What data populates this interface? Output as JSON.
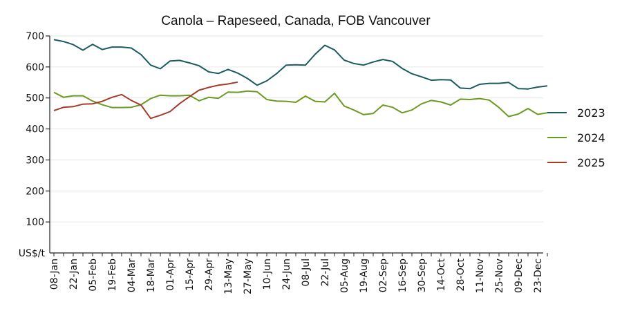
{
  "chart_data": {
    "type": "line",
    "title": "Canola – Rapeseed, Canada, FOB Vancouver",
    "ylabel": "US$/t",
    "ylim": [
      0,
      700
    ],
    "yticks": [
      100,
      200,
      300,
      400,
      500,
      600,
      700
    ],
    "grid": true,
    "legend_position": "right",
    "x_weeks": 52,
    "x_tick_labels": [
      "08-Jan",
      "22-Jan",
      "05-Feb",
      "19-Feb",
      "04-Mar",
      "18-Mar",
      "01-Apr",
      "15-Apr",
      "29-Apr",
      "13-May",
      "27-May",
      "10-Jun",
      "24-Jun",
      "08-Jul",
      "22-Jul",
      "05-Aug",
      "19-Aug",
      "02-Sep",
      "16-Sep",
      "30-Sep",
      "14-Oct",
      "28-Oct",
      "11-Nov",
      "25-Nov",
      "09-Dec",
      "23-Dec"
    ],
    "series": [
      {
        "name": "2023",
        "color": "#1b5a5e",
        "values": [
          688,
          682,
          672,
          654,
          673,
          656,
          664,
          664,
          661,
          640,
          606,
          594,
          619,
          621,
          613,
          604,
          584,
          579,
          592,
          580,
          563,
          541,
          555,
          578,
          606,
          607,
          606,
          641,
          670,
          655,
          622,
          611,
          606,
          616,
          624,
          618,
          595,
          578,
          568,
          557,
          559,
          558,
          532,
          530,
          544,
          547,
          547,
          550,
          530,
          529,
          535,
          539
        ]
      },
      {
        "name": "2024",
        "color": "#6a9a22",
        "values": [
          518,
          502,
          507,
          507,
          490,
          478,
          469,
          469,
          470,
          478,
          498,
          509,
          507,
          507,
          509,
          491,
          502,
          499,
          519,
          518,
          522,
          520,
          495,
          490,
          489,
          486,
          506,
          489,
          487,
          515,
          474,
          461,
          446,
          450,
          477,
          470,
          452,
          461,
          481,
          492,
          487,
          477,
          496,
          495,
          498,
          493,
          469,
          440,
          448,
          466,
          447,
          452
        ]
      },
      {
        "name": "2025",
        "color": "#a23b2c",
        "values": [
          459,
          470,
          472,
          480,
          481,
          489,
          502,
          511,
          492,
          477,
          434,
          444,
          456,
          482,
          504,
          525,
          534,
          541,
          545,
          551
        ]
      }
    ]
  }
}
